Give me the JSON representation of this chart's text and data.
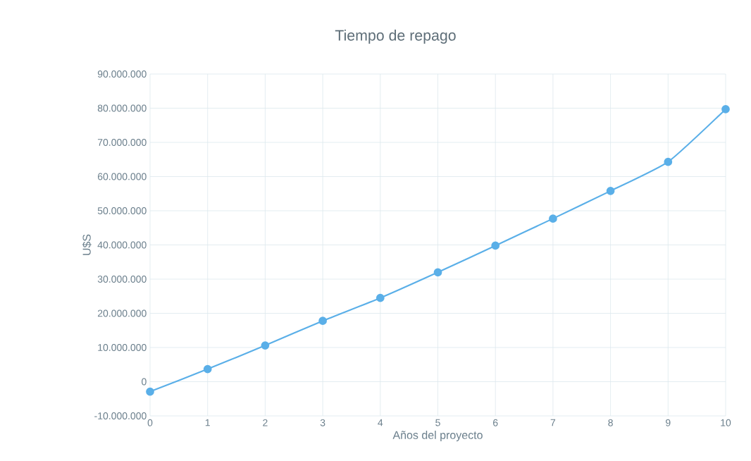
{
  "chart_data": {
    "type": "line",
    "title": "Tiempo de repago",
    "xlabel": "Años del proyecto",
    "ylabel": "U$S",
    "x": [
      0,
      1,
      2,
      3,
      4,
      5,
      6,
      7,
      8,
      9,
      10
    ],
    "series": [
      {
        "color": "#5aafe8",
        "values": [
          -2900000,
          3700000,
          10600000,
          17800000,
          24500000,
          32000000,
          39800000,
          47700000,
          55800000,
          64300000,
          79700000
        ]
      }
    ],
    "xlim": [
      0,
      10
    ],
    "xticks": [
      0,
      1,
      2,
      3,
      4,
      5,
      6,
      7,
      8,
      9,
      10
    ],
    "ylim": [
      -10000000,
      90000000
    ],
    "yticks": [
      {
        "value": -10000000,
        "label": "-10.000.000"
      },
      {
        "value": 0,
        "label": "0"
      },
      {
        "value": 10000000,
        "label": "10.000.000"
      },
      {
        "value": 20000000,
        "label": "20.000.000"
      },
      {
        "value": 30000000,
        "label": "30.000.000"
      },
      {
        "value": 40000000,
        "label": "40.000.000"
      },
      {
        "value": 50000000,
        "label": "50.000.000"
      },
      {
        "value": 60000000,
        "label": "60.000.000"
      },
      {
        "value": 70000000,
        "label": "70.000.000"
      },
      {
        "value": 80000000,
        "label": "80.000.000"
      },
      {
        "value": 90000000,
        "label": "90.000.000"
      }
    ],
    "grid": true,
    "marker": "circle",
    "line_style": "solid",
    "legend": false
  }
}
